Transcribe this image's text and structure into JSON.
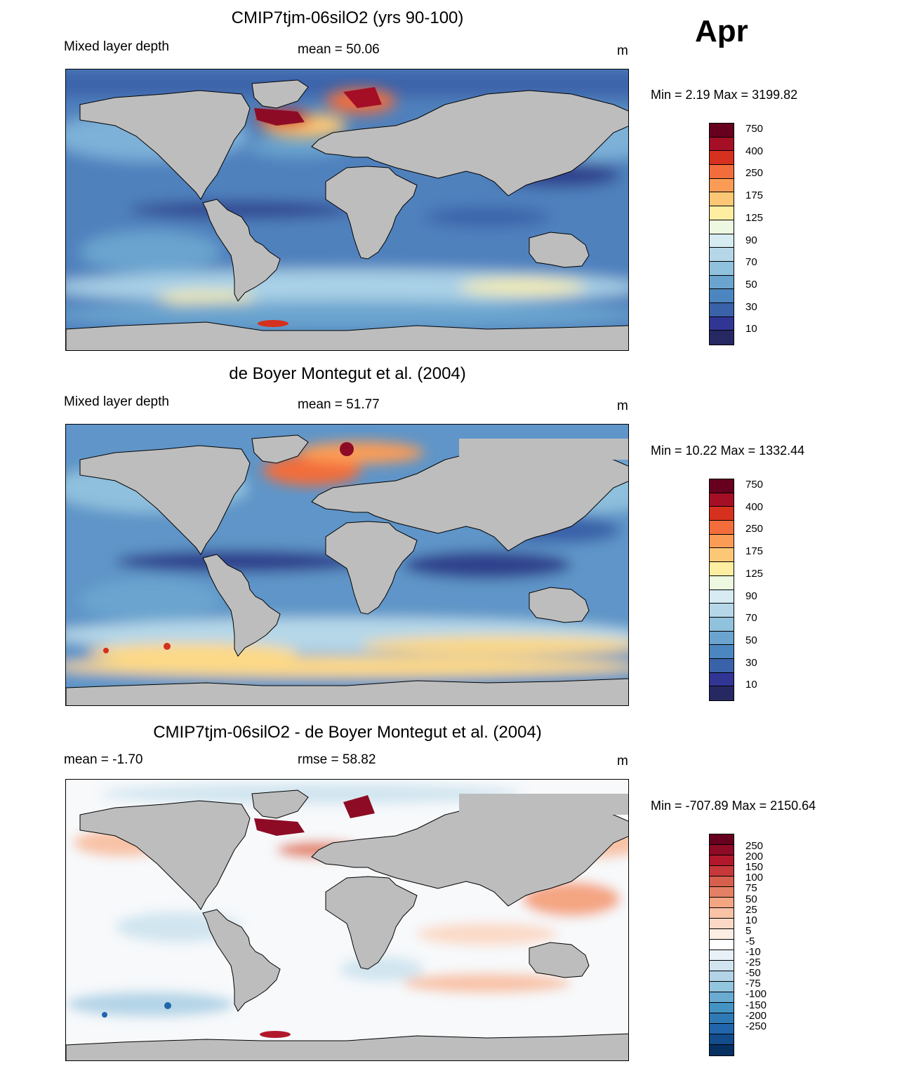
{
  "month": "Apr",
  "panels": [
    {
      "title": "CMIP7tjm-06silO2 (yrs 90-100)",
      "left_label": "Mixed layer depth",
      "center_label": "mean =  50.06",
      "units": "m",
      "minmax": "Min =    2.19 Max = 3199.82",
      "colorbar": {
        "labels": [
          "750",
          "400",
          "250",
          "175",
          "125",
          "90",
          "70",
          "50",
          "30",
          "10"
        ],
        "colors": [
          "#67001f",
          "#a50f26",
          "#d6301e",
          "#f26d3b",
          "#fb9c56",
          "#fdc876",
          "#feeea2",
          "#eef7e0",
          "#d6ebf2",
          "#b5d7e8",
          "#90c1dd",
          "#6aa4cf",
          "#4c86c0",
          "#3a62a9",
          "#313695",
          "#262862"
        ]
      }
    },
    {
      "title": "de Boyer Montegut et al. (2004)",
      "left_label": "Mixed layer depth",
      "center_label": "mean =  51.77",
      "units": "m",
      "minmax": "Min =  10.22 Max = 1332.44",
      "colorbar": {
        "labels": [
          "750",
          "400",
          "250",
          "175",
          "125",
          "90",
          "70",
          "50",
          "30",
          "10"
        ],
        "colors": [
          "#67001f",
          "#a50f26",
          "#d6301e",
          "#f26d3b",
          "#fb9c56",
          "#fdc876",
          "#feeea2",
          "#eef7e0",
          "#d6ebf2",
          "#b5d7e8",
          "#90c1dd",
          "#6aa4cf",
          "#4c86c0",
          "#3a62a9",
          "#313695",
          "#262862"
        ]
      }
    },
    {
      "title": "CMIP7tjm-06silO2 - de Boyer Montegut et al. (2004)",
      "left_label": "mean =  -1.70",
      "center_label": "rmse =  58.82",
      "units": "m",
      "minmax": "Min = -707.89 Max = 2150.64",
      "colorbar": {
        "labels": [
          "250",
          "200",
          "150",
          "100",
          "75",
          "50",
          "25",
          "10",
          "5",
          "-5",
          "-10",
          "-25",
          "-50",
          "-75",
          "-100",
          "-150",
          "-200",
          "-250"
        ],
        "colors": [
          "#67001f",
          "#8e0b25",
          "#b2182b",
          "#c7383a",
          "#d6604d",
          "#e48065",
          "#f4a582",
          "#f8c2a6",
          "#fbd9c6",
          "#fdeee4",
          "#ffffff",
          "#e8f1f7",
          "#d1e5f0",
          "#b3d4e7",
          "#92c5de",
          "#6aabd1",
          "#4393c3",
          "#2f79b5",
          "#2166ac",
          "#134c8a",
          "#053061"
        ]
      }
    }
  ]
}
